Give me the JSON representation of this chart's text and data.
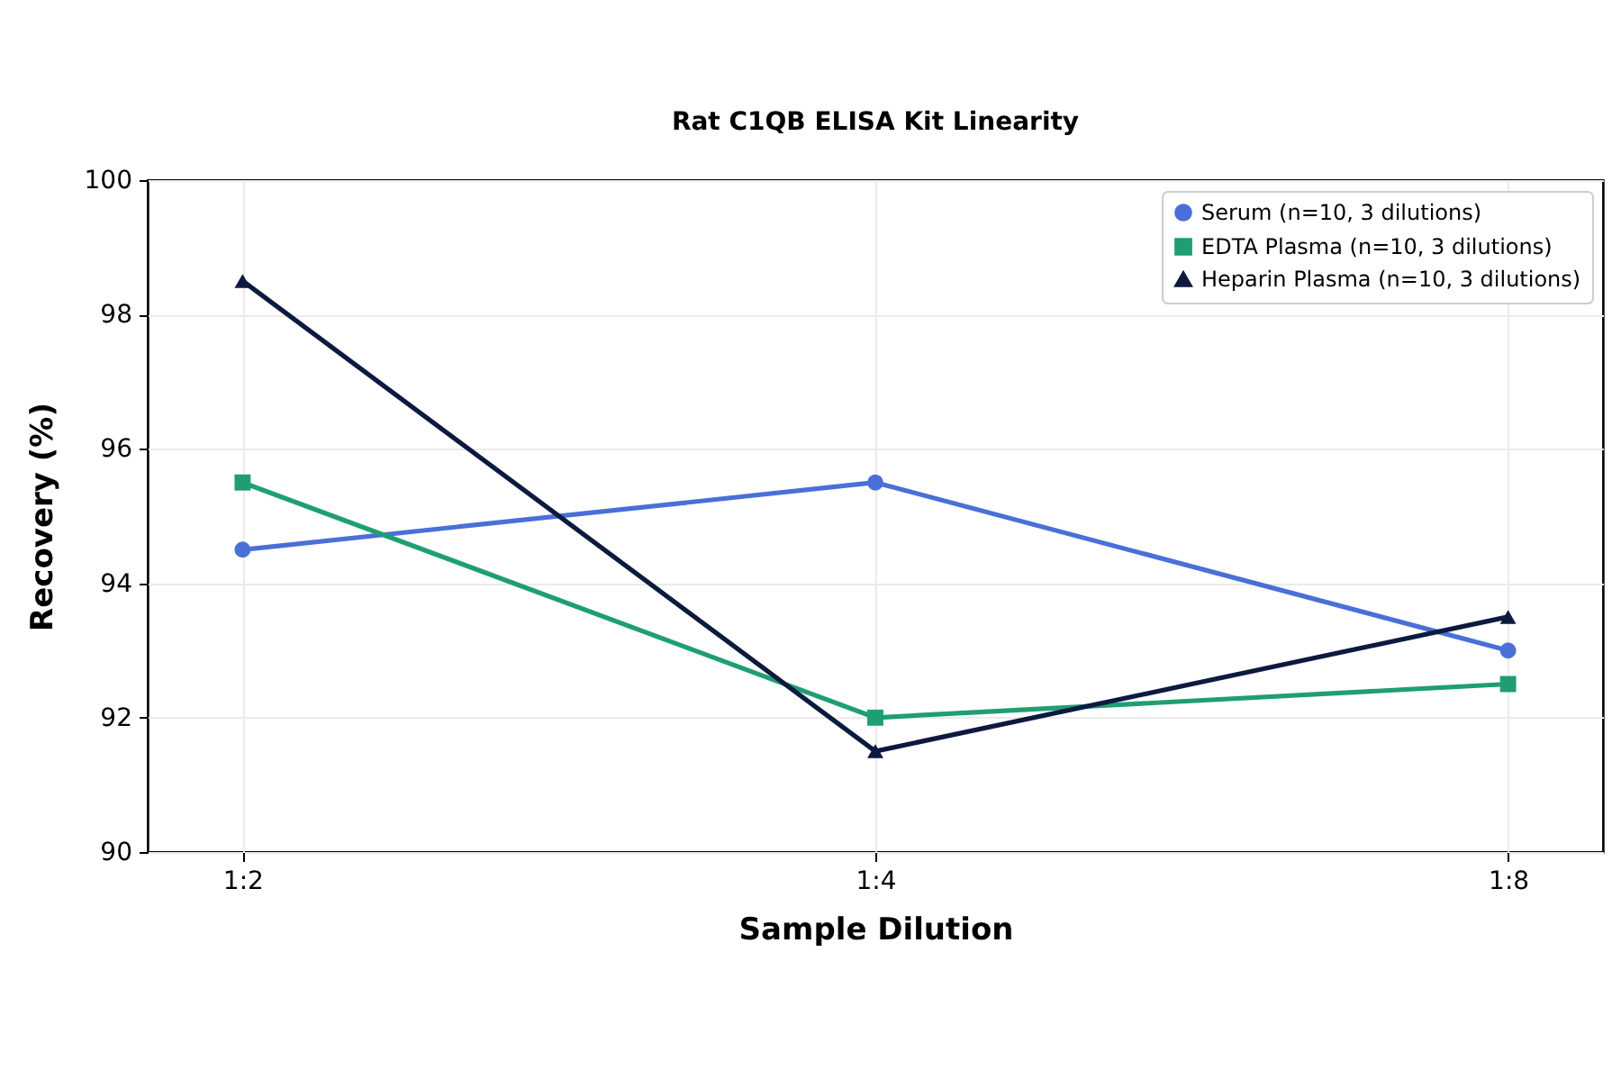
{
  "chart_data": {
    "type": "line",
    "title": "Rat C1QB ELISA Kit Linearity",
    "xlabel": "Sample Dilution",
    "ylabel": "Recovery (%)",
    "categories": [
      "1:2",
      "1:4",
      "1:8"
    ],
    "series": [
      {
        "name": "Serum (n=10, 3 dilutions)",
        "color": "#4a6fd8",
        "marker": "circle",
        "values": [
          94.5,
          95.5,
          93.0
        ]
      },
      {
        "name": "EDTA Plasma (n=10, 3 dilutions)",
        "color": "#1f9e74",
        "marker": "square",
        "values": [
          95.5,
          92.0,
          92.5
        ]
      },
      {
        "name": "Heparin Plasma (n=10, 3 dilutions)",
        "color": "#0d1a40",
        "marker": "triangle",
        "values": [
          98.5,
          91.5,
          93.5
        ]
      }
    ],
    "ylim": [
      90,
      100
    ],
    "yticks": [
      90,
      92,
      94,
      96,
      98,
      100
    ],
    "grid": true,
    "legend": "top right",
    "line_style": "solid"
  }
}
